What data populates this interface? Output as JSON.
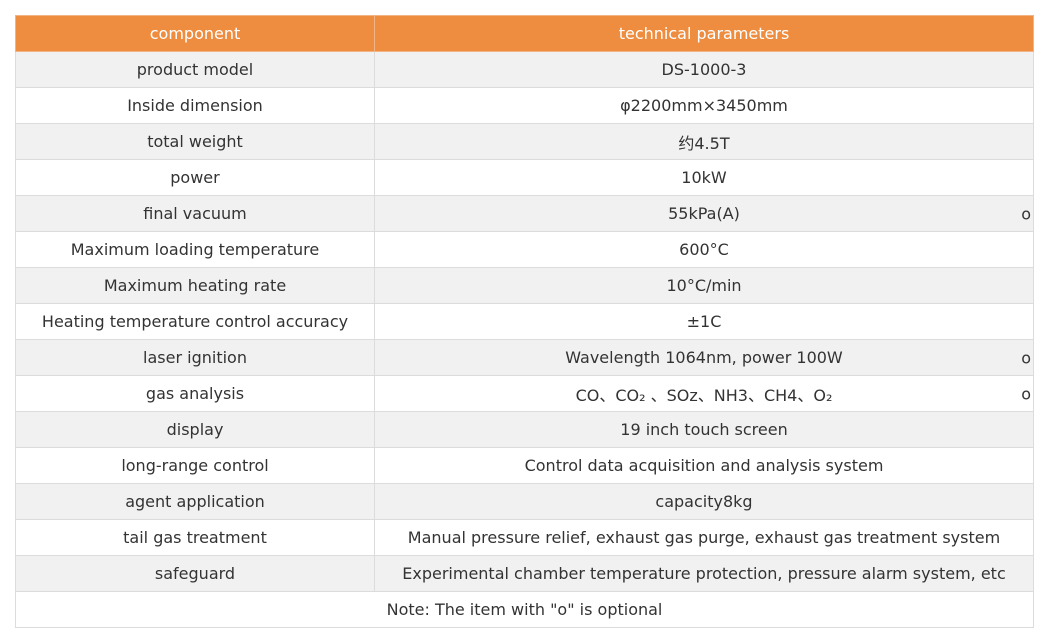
{
  "header": {
    "col1": "component",
    "col2": "technical parameters"
  },
  "rows": [
    {
      "component": "product model",
      "param": "DS-1000-3",
      "optional": ""
    },
    {
      "component": "Inside dimension",
      "param": "φ2200mm×3450mm",
      "optional": ""
    },
    {
      "component": "total weight",
      "param": "约4.5T",
      "optional": ""
    },
    {
      "component": "power",
      "param": "10kW",
      "optional": ""
    },
    {
      "component": "final vacuum",
      "param": "55kPa(A)",
      "optional": "o"
    },
    {
      "component": "Maximum loading temperature",
      "param": "600°C",
      "optional": ""
    },
    {
      "component": "Maximum heating rate",
      "param": "10°C/min",
      "optional": ""
    },
    {
      "component": "Heating temperature control accuracy",
      "param": "±1C",
      "optional": ""
    },
    {
      "component": "laser ignition",
      "param": "Wavelength 1064nm, power 100W",
      "optional": "o"
    },
    {
      "component": "gas analysis",
      "param": "CO、CO₂ 、SOz、NH3、CH4、O₂",
      "optional": "o"
    },
    {
      "component": "display",
      "param": "19 inch touch screen",
      "optional": ""
    },
    {
      "component": "long-range control",
      "param": "Control data acquisition and analysis system",
      "optional": ""
    },
    {
      "component": "agent application",
      "param": "capacity8kg",
      "optional": ""
    },
    {
      "component": "tail gas treatment",
      "param": "Manual pressure relief, exhaust gas purge, exhaust gas treatment system",
      "optional": ""
    },
    {
      "component": "safeguard",
      "param": "Experimental chamber temperature protection, pressure alarm system, etc",
      "optional": ""
    }
  ],
  "note": "Note: The item with \"o\" is optional",
  "colors": {
    "header_bg": "#ee8c3f",
    "row_alt_bg": "#f1f1f1",
    "border": "#dcdcdc"
  }
}
